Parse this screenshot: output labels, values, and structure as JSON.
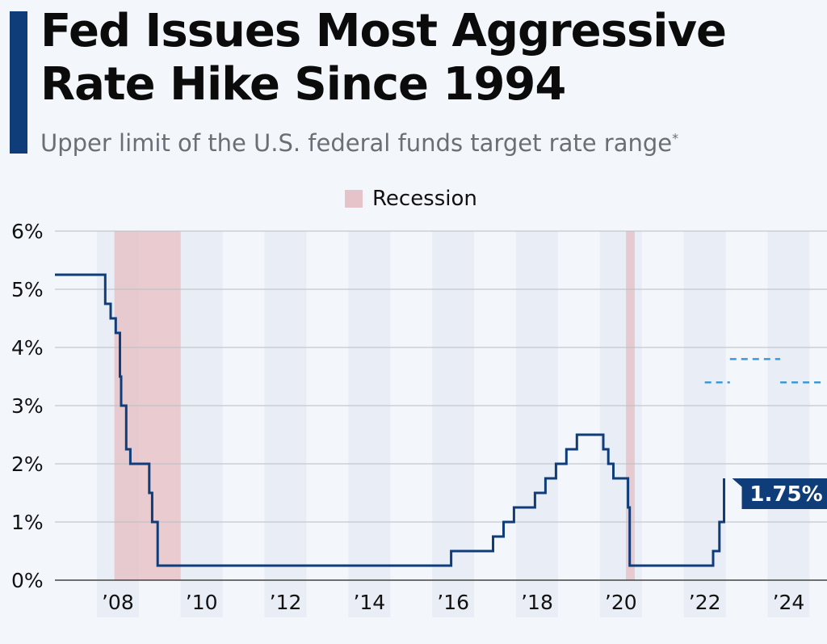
{
  "header": {
    "title": "Fed Issues Most Aggressive Rate Hike Since 1994",
    "subtitle": "Upper limit of the U.S. federal funds target rate range",
    "subtitle_mark": "*"
  },
  "legend": {
    "label": "Recession",
    "color": "#e6c3c8"
  },
  "colors": {
    "accent": "#0f3d7a",
    "line": "#0f3d7a",
    "projection": "#3b9ad6",
    "recession": "#e6c3c8",
    "year_band": "#e9edf5",
    "grid": "#b9bdc3",
    "background": "#f3f6fa"
  },
  "chart_data": {
    "type": "line",
    "title": "Fed Issues Most Aggressive Rate Hike Since 1994",
    "subtitle": "Upper limit of the U.S. federal funds target rate range",
    "xlabel": "",
    "ylabel": "",
    "xlim": [
      2006.5,
      2024.8
    ],
    "ylim": [
      0,
      6
    ],
    "grid": true,
    "legend_position": "top-center",
    "y_ticks": [
      {
        "value": 0,
        "label": "0%"
      },
      {
        "value": 1,
        "label": "1%"
      },
      {
        "value": 2,
        "label": "2%"
      },
      {
        "value": 3,
        "label": "3%"
      },
      {
        "value": 4,
        "label": "4%"
      },
      {
        "value": 5,
        "label": "5%"
      },
      {
        "value": 6,
        "label": "6%"
      }
    ],
    "x_ticks": [
      {
        "value": 2008,
        "label": "’08"
      },
      {
        "value": 2010,
        "label": "’10"
      },
      {
        "value": 2012,
        "label": "’12"
      },
      {
        "value": 2014,
        "label": "’14"
      },
      {
        "value": 2016,
        "label": "’16"
      },
      {
        "value": 2018,
        "label": "’18"
      },
      {
        "value": 2020,
        "label": "’20"
      },
      {
        "value": 2022,
        "label": "’22"
      },
      {
        "value": 2024,
        "label": "’24"
      }
    ],
    "recessions": [
      {
        "start": 2007.92,
        "end": 2009.5
      },
      {
        "start": 2020.12,
        "end": 2020.33
      }
    ],
    "series": [
      {
        "style": "step",
        "points": [
          [
            2006.5,
            5.25
          ],
          [
            2007.7,
            5.25
          ],
          [
            2007.7,
            4.75
          ],
          [
            2007.83,
            4.75
          ],
          [
            2007.83,
            4.5
          ],
          [
            2007.95,
            4.5
          ],
          [
            2007.95,
            4.25
          ],
          [
            2008.05,
            4.25
          ],
          [
            2008.05,
            3.5
          ],
          [
            2008.08,
            3.5
          ],
          [
            2008.08,
            3.0
          ],
          [
            2008.2,
            3.0
          ],
          [
            2008.2,
            2.25
          ],
          [
            2008.3,
            2.25
          ],
          [
            2008.3,
            2.0
          ],
          [
            2008.75,
            2.0
          ],
          [
            2008.75,
            1.5
          ],
          [
            2008.82,
            1.5
          ],
          [
            2008.82,
            1.0
          ],
          [
            2008.95,
            1.0
          ],
          [
            2008.95,
            0.25
          ],
          [
            2015.95,
            0.25
          ],
          [
            2015.95,
            0.5
          ],
          [
            2016.95,
            0.5
          ],
          [
            2016.95,
            0.75
          ],
          [
            2017.2,
            0.75
          ],
          [
            2017.2,
            1.0
          ],
          [
            2017.45,
            1.0
          ],
          [
            2017.45,
            1.25
          ],
          [
            2017.95,
            1.25
          ],
          [
            2017.95,
            1.5
          ],
          [
            2018.2,
            1.5
          ],
          [
            2018.2,
            1.75
          ],
          [
            2018.45,
            1.75
          ],
          [
            2018.45,
            2.0
          ],
          [
            2018.7,
            2.0
          ],
          [
            2018.7,
            2.25
          ],
          [
            2018.95,
            2.25
          ],
          [
            2018.95,
            2.5
          ],
          [
            2019.58,
            2.5
          ],
          [
            2019.58,
            2.25
          ],
          [
            2019.7,
            2.25
          ],
          [
            2019.7,
            2.0
          ],
          [
            2019.82,
            2.0
          ],
          [
            2019.82,
            1.75
          ],
          [
            2020.17,
            1.75
          ],
          [
            2020.17,
            1.25
          ],
          [
            2020.21,
            1.25
          ],
          [
            2020.21,
            0.25
          ],
          [
            2022.2,
            0.25
          ],
          [
            2022.2,
            0.5
          ],
          [
            2022.35,
            0.5
          ],
          [
            2022.35,
            1.0
          ],
          [
            2022.46,
            1.0
          ],
          [
            2022.46,
            1.75
          ]
        ]
      },
      {
        "style": "dashed",
        "segments": [
          [
            [
              2022.0,
              3.4
            ],
            [
              2022.6,
              3.4
            ]
          ],
          [
            [
              2022.6,
              3.8
            ],
            [
              2023.8,
              3.8
            ]
          ],
          [
            [
              2023.8,
              3.4
            ],
            [
              2024.8,
              3.4
            ]
          ]
        ]
      }
    ],
    "annotations": [
      {
        "x": 2022.46,
        "y": 1.75,
        "text": "1.75%"
      }
    ]
  }
}
